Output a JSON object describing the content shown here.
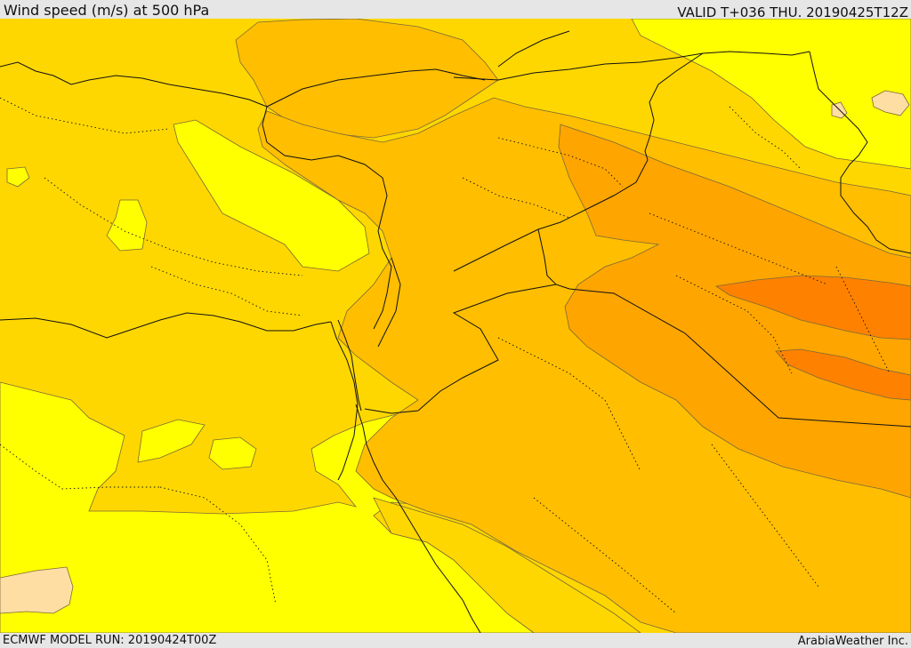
{
  "header": {
    "title": "Wind speed (m/s) at 500 hPa",
    "valid_time": "VALID T+036 THU. 20190425T12Z"
  },
  "footer": {
    "model_run": "ECMWF MODEL RUN: 20190424T00Z",
    "credit": "ArabiaWeather Inc."
  },
  "palette": {
    "band_1": "#ffff00",
    "band_2": "#ffd700",
    "band_3": "#ffbe00",
    "band_4": "#ffa500",
    "band_5": "#ff8100",
    "low_region": "#ffdea3",
    "contour": "#7a6a3a",
    "border": "#111111"
  }
}
